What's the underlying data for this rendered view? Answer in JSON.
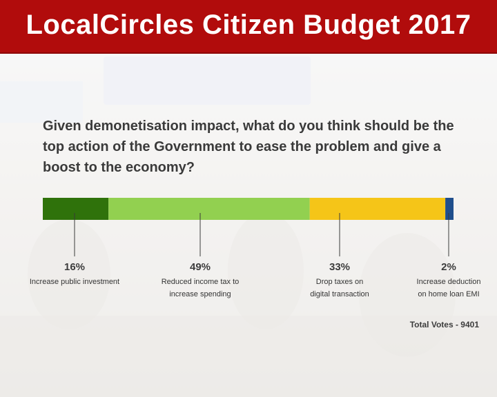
{
  "header": {
    "title": "LocalCircles Citizen Budget 2017"
  },
  "question": "Given demonetisation impact, what do you think should be the top action of the Government to ease the problem and give a boost to the economy?",
  "total_votes": "Total Votes - 9401",
  "chart_data": {
    "type": "bar",
    "orientation": "horizontal-stacked",
    "series": [
      {
        "label_lines": [
          "Increase public investment"
        ],
        "value": 16,
        "value_label": "16%",
        "color": "#2f720b"
      },
      {
        "label_lines": [
          "Reduced income tax to",
          "increase spending"
        ],
        "value": 49,
        "value_label": "49%",
        "color": "#92d050"
      },
      {
        "label_lines": [
          "Drop taxes on",
          "digital transaction"
        ],
        "value": 33,
        "value_label": "33%",
        "color": "#f5c518"
      },
      {
        "label_lines": [
          "Increase deduction",
          "on home loan EMI"
        ],
        "value": 2,
        "value_label": "2%",
        "color": "#1f4e8c"
      }
    ],
    "grid": false,
    "legend": "none"
  }
}
